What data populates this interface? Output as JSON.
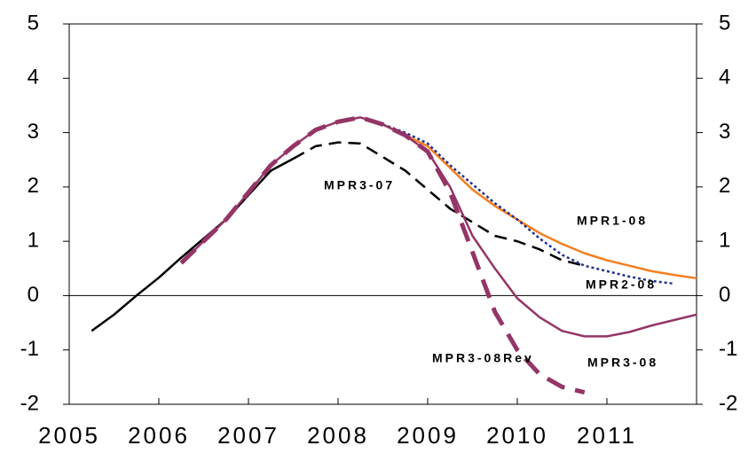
{
  "chart_data": {
    "type": "line",
    "xlim": [
      2005,
      2012
    ],
    "xticks": [
      2005,
      2006,
      2007,
      2008,
      2009,
      2010,
      2011
    ],
    "ylim": [
      -2,
      5
    ],
    "yticks": [
      -2,
      -1,
      0,
      1,
      2,
      3,
      4,
      5
    ],
    "y2lim": [
      -2,
      5
    ],
    "y2ticks": [
      -2,
      -1,
      0,
      1,
      2,
      3,
      4,
      5
    ],
    "series": [
      {
        "color": "#000000",
        "dash": "solid",
        "weight": "normal",
        "x": [
          2005.25,
          2005.5,
          2005.75,
          2006.0,
          2006.25,
          2006.5,
          2006.75,
          2007.0,
          2007.25,
          2007.5
        ],
        "values": [
          -0.65,
          -0.35,
          0.0,
          0.33,
          0.7,
          1.05,
          1.4,
          1.85,
          2.3,
          2.52
        ]
      },
      {
        "name": "MPR3-07",
        "color": "#000000",
        "dash": "dashed",
        "weight": "normal",
        "x": [
          2007.5,
          2007.75,
          2008.0,
          2008.25,
          2008.5,
          2008.75,
          2009.0,
          2009.25,
          2009.5,
          2009.75,
          2010.0,
          2010.25,
          2010.5,
          2010.75
        ],
        "values": [
          2.52,
          2.75,
          2.82,
          2.8,
          2.55,
          2.3,
          1.95,
          1.6,
          1.35,
          1.1,
          1.0,
          0.85,
          0.65,
          0.55
        ]
      },
      {
        "name": "MPR1-08",
        "color": "#f47f20",
        "dash": "solid",
        "weight": "normal",
        "x": [
          2008.5,
          2008.75,
          2009.0,
          2009.25,
          2009.5,
          2009.75,
          2010.0,
          2010.25,
          2010.5,
          2010.75,
          2011.0,
          2011.25,
          2011.5,
          2011.75,
          2012.0
        ],
        "values": [
          3.15,
          2.95,
          2.75,
          2.35,
          1.95,
          1.65,
          1.4,
          1.15,
          0.95,
          0.78,
          0.65,
          0.55,
          0.45,
          0.38,
          0.32
        ]
      },
      {
        "name": "MPR2-08",
        "color": "#1f2f8f",
        "dash": "dotted",
        "weight": "normal",
        "x": [
          2008.5,
          2008.75,
          2009.0,
          2009.25,
          2009.5,
          2009.75,
          2010.0,
          2010.25,
          2010.5,
          2010.75,
          2011.0,
          2011.25,
          2011.5,
          2011.75
        ],
        "values": [
          3.15,
          3.0,
          2.8,
          2.4,
          2.05,
          1.7,
          1.4,
          1.05,
          0.75,
          0.55,
          0.45,
          0.35,
          0.27,
          0.22
        ]
      },
      {
        "name": "MPR3-08Rev",
        "color": "#943567",
        "dash": "dashed",
        "weight": "thick",
        "x": [
          2006.25,
          2006.5,
          2006.75,
          2007.0,
          2007.25,
          2007.5,
          2007.75,
          2008.0,
          2008.25,
          2008.5,
          2008.75,
          2009.0,
          2009.25,
          2009.5,
          2009.75,
          2010.0,
          2010.25,
          2010.5,
          2010.75
        ],
        "values": [
          0.6,
          1.0,
          1.4,
          1.9,
          2.4,
          2.75,
          3.05,
          3.2,
          3.28,
          3.15,
          2.95,
          2.65,
          1.9,
          0.8,
          -0.3,
          -1.0,
          -1.45,
          -1.68,
          -1.78
        ]
      },
      {
        "name": "MPR3-08",
        "color": "#943567",
        "dash": "solid",
        "weight": "normal",
        "x": [
          2006.25,
          2006.5,
          2006.75,
          2007.0,
          2007.25,
          2007.5,
          2007.75,
          2008.0,
          2008.25,
          2008.5,
          2008.75,
          2009.0,
          2009.25,
          2009.5,
          2009.75,
          2010.0,
          2010.25,
          2010.5,
          2010.75,
          2011.0,
          2011.25,
          2011.5,
          2012.0
        ],
        "values": [
          0.6,
          1.0,
          1.4,
          1.9,
          2.4,
          2.75,
          3.05,
          3.2,
          3.28,
          3.15,
          2.95,
          2.65,
          2.0,
          1.1,
          0.5,
          -0.05,
          -0.4,
          -0.65,
          -0.75,
          -0.75,
          -0.67,
          -0.55,
          -0.35
        ]
      }
    ]
  }
}
